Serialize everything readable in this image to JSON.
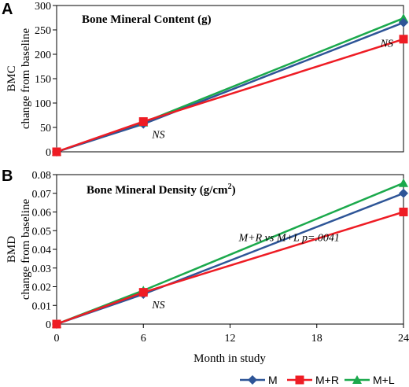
{
  "colors": {
    "M": "#2E5597",
    "M+R": "#EE1C24",
    "M+L": "#1BA94C"
  },
  "shared": {
    "xlabel": "Month in study",
    "x_ticks": [
      "0",
      "6",
      "12",
      "18",
      "24"
    ],
    "legend": [
      {
        "name": "M",
        "marker": "diamond"
      },
      {
        "name": "M+R",
        "marker": "square"
      },
      {
        "name": "M+L",
        "marker": "triangle"
      }
    ]
  },
  "chart_data": [
    {
      "panel": "A",
      "type": "line",
      "title": "Bone Mineral Content (g)",
      "ylabel": [
        "BMC",
        "change from baseline"
      ],
      "x": [
        0,
        6,
        24
      ],
      "xlim": [
        0,
        24
      ],
      "ylim": [
        0,
        300
      ],
      "y_ticks": [
        "0",
        "50",
        "100",
        "150",
        "200",
        "250",
        "300"
      ],
      "series": [
        {
          "name": "M",
          "values": [
            0,
            57,
            265
          ]
        },
        {
          "name": "M+R",
          "values": [
            0,
            62,
            231
          ]
        },
        {
          "name": "M+L",
          "values": [
            0,
            60,
            274
          ]
        }
      ],
      "annotations": [
        {
          "text": "NS",
          "x": 6.6,
          "y": 28
        },
        {
          "text": "NS",
          "x": 22.4,
          "y": 215
        }
      ]
    },
    {
      "panel": "B",
      "type": "line",
      "title_main": "Bone Mineral Density (g/cm",
      "title_sup": "2",
      "title_end": ")",
      "ylabel": [
        "BMD",
        "change from baseline"
      ],
      "x": [
        0,
        6,
        24
      ],
      "xlim": [
        0,
        24
      ],
      "ylim": [
        0,
        0.08
      ],
      "y_ticks": [
        "0",
        "0.01",
        "0.02",
        "0.03",
        "0.04",
        "0.05",
        "0.06",
        "0.07",
        "0.08"
      ],
      "series": [
        {
          "name": "M",
          "values": [
            0,
            0.016,
            0.07
          ]
        },
        {
          "name": "M+R",
          "values": [
            0,
            0.017,
            0.06
          ]
        },
        {
          "name": "M+L",
          "values": [
            0,
            0.018,
            0.0755
          ]
        }
      ],
      "annotations": [
        {
          "text": "NS",
          "x": 6.6,
          "y": 0.0085
        },
        {
          "text": "M+R vs M+L p=.0041",
          "x": 12.6,
          "y": 0.0445
        }
      ]
    }
  ]
}
